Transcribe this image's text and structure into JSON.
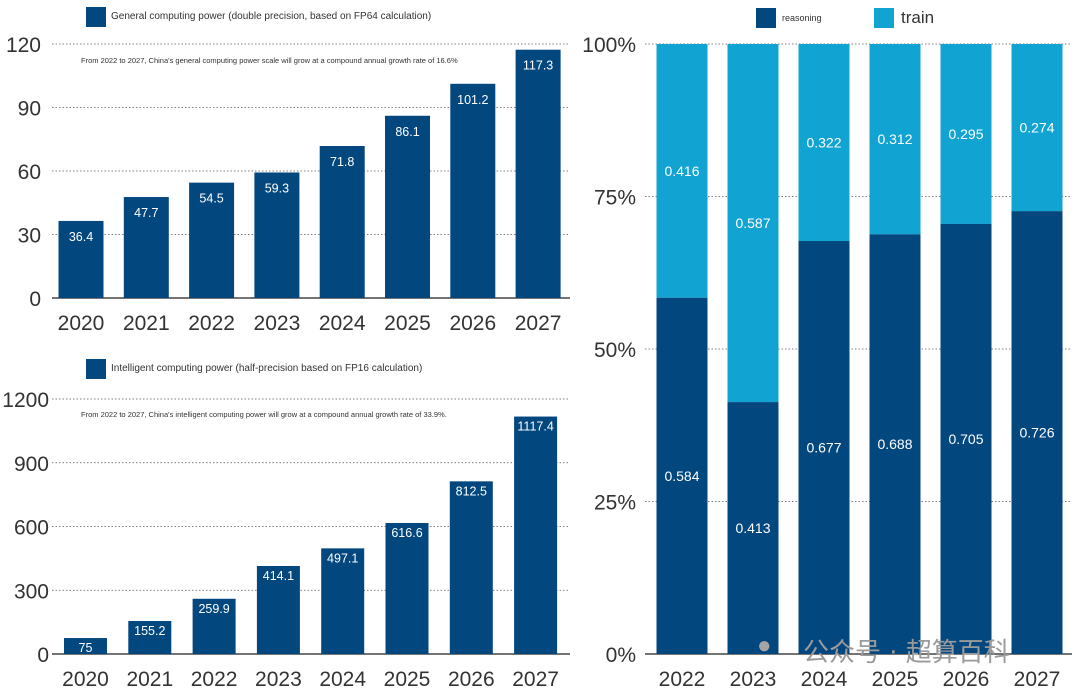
{
  "colors": {
    "dark": "#03477f",
    "light": "#11a3d1",
    "grid": "#555555",
    "axis": "#222222",
    "label": "#ffffff",
    "tick": "#333333"
  },
  "watermark": "公众号 · 超算百科",
  "chart_data": [
    {
      "type": "bar",
      "title": "General computing power (double precision, based on FP64 calculation)",
      "legend": "General computing power (double precision, based on FP64 calculation)",
      "annotation": "From 2022 to 2027, China's general computing power scale will grow at a compound annual growth rate of 16.6%",
      "categories": [
        "2020",
        "2021",
        "2022",
        "2023",
        "2024",
        "2025",
        "2026",
        "2027"
      ],
      "values": [
        36.4,
        47.7,
        54.5,
        59.3,
        71.8,
        86.1,
        101.2,
        117.3
      ],
      "value_labels": [
        "36.4",
        "47.7",
        "54.5",
        "59.3",
        "71.8",
        "86.1",
        "101.2",
        "117.3"
      ],
      "yticks": [
        "0",
        "30",
        "60",
        "90",
        "120"
      ],
      "ytick_values": [
        0,
        30,
        60,
        90,
        120
      ],
      "ylim": [
        0,
        120
      ]
    },
    {
      "type": "bar",
      "title": "Intelligent computing power (half-precision based on FP16 calculation)",
      "legend": "Intelligent computing power (half-precision based on FP16 calculation)",
      "annotation": "From 2022 to 2027, China's intelligent computing power will grow at a compound annual growth rate of 33.9%.",
      "categories": [
        "2020",
        "2021",
        "2022",
        "2023",
        "2024",
        "2025",
        "2026",
        "2027"
      ],
      "values": [
        75,
        155.2,
        259.9,
        414.1,
        497.1,
        616.6,
        812.5,
        1117.4
      ],
      "value_labels": [
        "75",
        "155.2",
        "259.9",
        "414.1",
        "497.1",
        "616.6",
        "812.5",
        "1117.4"
      ],
      "yticks": [
        "0",
        "300",
        "600",
        "900",
        "1200"
      ],
      "ytick_values": [
        0,
        300,
        600,
        900,
        1200
      ],
      "ylim": [
        0,
        1200
      ]
    },
    {
      "type": "bar",
      "stacked": true,
      "percent": true,
      "categories": [
        "2022",
        "2023",
        "2024",
        "2025",
        "2026",
        "2027"
      ],
      "series": [
        {
          "name": "reasoning",
          "values": [
            0.584,
            0.413,
            0.677,
            0.688,
            0.705,
            0.726
          ],
          "value_labels": [
            "0.584",
            "0.413",
            "0.677",
            "0.688",
            "0.705",
            "0.726"
          ]
        },
        {
          "name": "train",
          "values": [
            0.416,
            0.587,
            0.322,
            0.312,
            0.295,
            0.274
          ],
          "value_labels": [
            "0.416",
            "0.587",
            "0.322",
            "0.312",
            "0.295",
            "0.274"
          ]
        }
      ],
      "yticks": [
        "0%",
        "25%",
        "50%",
        "75%",
        "100%"
      ],
      "ytick_values": [
        0,
        0.25,
        0.5,
        0.75,
        1.0
      ],
      "ylim": [
        0,
        1
      ]
    }
  ]
}
